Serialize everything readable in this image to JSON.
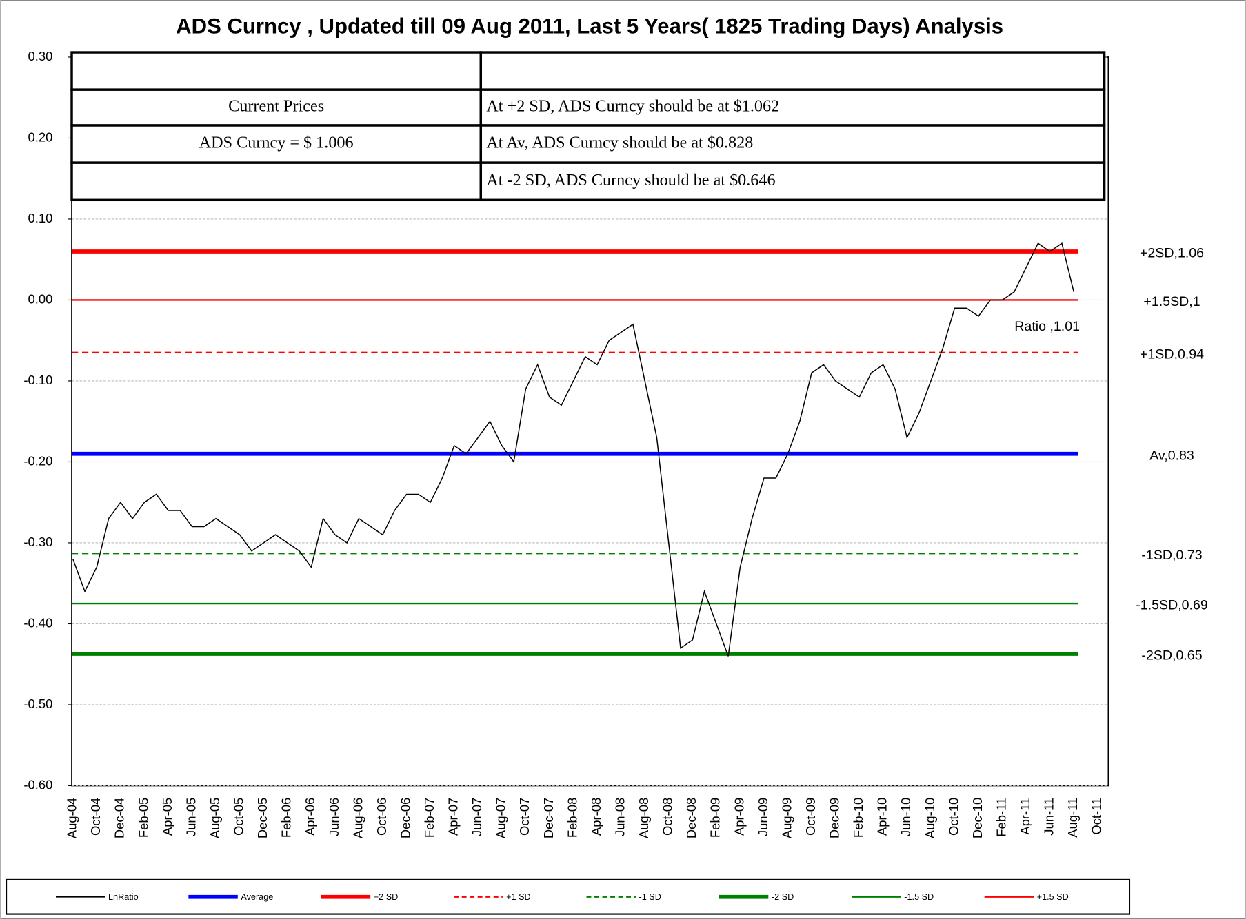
{
  "chart_data": {
    "type": "line",
    "title": "ADS Curncy , Updated till 09 Aug 2011, Last 5 Years( 1825 Trading Days) Analysis",
    "info_table": {
      "left": [
        "Current Prices",
        "ADS Curncy =  $ 1.006"
      ],
      "right": [
        "At +2 SD, ADS Curncy should be at $1.062",
        "At Av, ADS Curncy should be at $0.828",
        "At -2 SD, ADS Curncy should be at $0.646"
      ]
    },
    "categories": [
      "Aug-04",
      null,
      "Oct-04",
      null,
      "Dec-04",
      null,
      "Feb-05",
      null,
      "Apr-05",
      null,
      "Jun-05",
      null,
      "Aug-05",
      null,
      "Oct-05",
      null,
      "Dec-05",
      null,
      "Feb-06",
      null,
      "Apr-06",
      null,
      "Jun-06",
      null,
      "Aug-06",
      null,
      "Oct-06",
      null,
      "Dec-06",
      null,
      "Feb-07",
      null,
      "Apr-07",
      null,
      "Jun-07",
      null,
      "Aug-07",
      null,
      "Oct-07",
      null,
      "Dec-07",
      null,
      "Feb-08",
      null,
      "Apr-08",
      null,
      "Jun-08",
      null,
      "Aug-08",
      null,
      "Oct-08",
      null,
      "Dec-08",
      null,
      "Feb-09",
      null,
      "Apr-09",
      null,
      "Jun-09",
      null,
      "Aug-09",
      null,
      "Oct-09",
      null,
      "Dec-09",
      null,
      "Feb-10",
      null,
      "Apr-10",
      null,
      "Jun-10",
      null,
      "Aug-10",
      null,
      "Oct-10",
      null,
      "Dec-10",
      null,
      "Feb-11",
      null,
      "Apr-11",
      null,
      "Jun-11",
      null,
      "Aug-11",
      null,
      "Oct-11"
    ],
    "series": [
      {
        "name": "LnRatio",
        "color": "#000000",
        "values": [
          -0.32,
          -0.36,
          -0.33,
          -0.27,
          -0.25,
          -0.27,
          -0.25,
          -0.24,
          -0.26,
          -0.26,
          -0.28,
          -0.28,
          -0.27,
          -0.28,
          -0.29,
          -0.31,
          -0.3,
          -0.29,
          -0.3,
          -0.31,
          -0.33,
          -0.27,
          -0.29,
          -0.3,
          -0.27,
          -0.28,
          -0.29,
          -0.26,
          -0.24,
          -0.24,
          -0.25,
          -0.22,
          -0.18,
          -0.19,
          -0.17,
          -0.15,
          -0.18,
          -0.2,
          -0.11,
          -0.08,
          -0.12,
          -0.13,
          -0.1,
          -0.07,
          -0.08,
          -0.05,
          -0.04,
          -0.03,
          -0.1,
          -0.17,
          -0.3,
          -0.43,
          -0.42,
          -0.36,
          -0.4,
          -0.44,
          -0.33,
          -0.27,
          -0.22,
          -0.22,
          -0.19,
          -0.15,
          -0.09,
          -0.08,
          -0.1,
          -0.11,
          -0.12,
          -0.09,
          -0.08,
          -0.11,
          -0.17,
          -0.14,
          -0.1,
          -0.06,
          -0.01,
          -0.01,
          -0.02,
          0.0,
          0.0,
          0.01,
          0.04,
          0.07,
          0.06,
          0.07,
          0.01,
          null,
          null
        ]
      }
    ],
    "annotation": "Ratio ,1.01",
    "reference_lines": [
      {
        "name": "Average",
        "value": -0.19,
        "label": "Av,0.83",
        "color": "#0000ff",
        "width": 5,
        "dashed": false
      },
      {
        "name": "+2 SD",
        "value": 0.06,
        "label": "+2SD,1.06",
        "color": "#ff0000",
        "width": 5,
        "dashed": false
      },
      {
        "name": "+1 SD",
        "value": -0.065,
        "label": "+1SD,0.94",
        "color": "#ff0000",
        "width": 2,
        "dashed": true
      },
      {
        "name": "-1 SD",
        "value": -0.313,
        "label": "-1SD,0.73",
        "color": "#008000",
        "width": 2,
        "dashed": true
      },
      {
        "name": "-2 SD",
        "value": -0.437,
        "label": "-2SD,0.65",
        "color": "#008000",
        "width": 5,
        "dashed": false
      },
      {
        "name": "-1.5 SD",
        "value": -0.375,
        "label": "-1.5SD,0.69",
        "color": "#008000",
        "width": 2,
        "dashed": false
      },
      {
        "name": "+1.5 SD",
        "value": 0.0,
        "label": "+1.5SD,1",
        "color": "#ff0000",
        "width": 2,
        "dashed": false
      }
    ],
    "ylim": [
      -0.6,
      0.3
    ],
    "yticks": [
      {
        "value": 0.3,
        "label": "0.30"
      },
      {
        "value": 0.2,
        "label": "0.20"
      },
      {
        "value": 0.1,
        "label": "0.10"
      },
      {
        "value": 0.0,
        "label": "0.00"
      },
      {
        "value": -0.1,
        "label": "-0.10"
      },
      {
        "value": -0.2,
        "label": "-0.20"
      },
      {
        "value": -0.3,
        "label": "-0.30"
      },
      {
        "value": -0.4,
        "label": "-0.40"
      },
      {
        "value": -0.5,
        "label": "-0.50"
      },
      {
        "value": -0.6,
        "label": "-0.60"
      }
    ],
    "grid": true,
    "legend": "bottom"
  }
}
